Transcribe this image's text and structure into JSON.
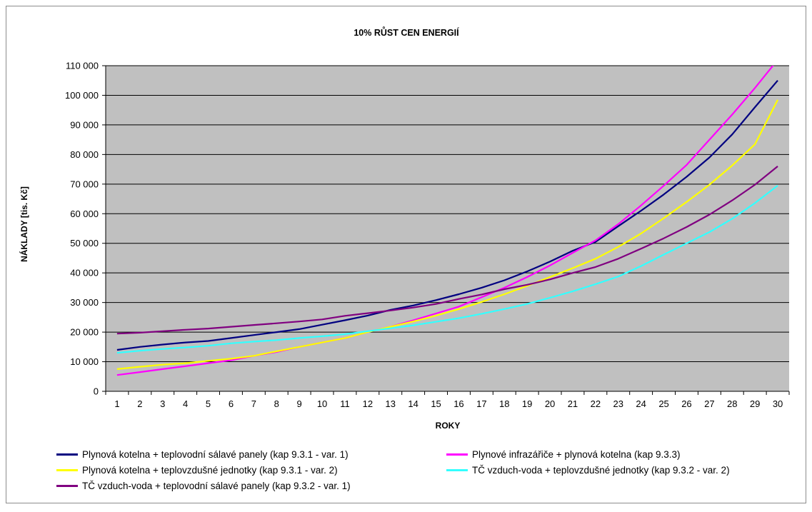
{
  "chart_data": {
    "type": "line",
    "title": "10% RŮST CEN ENERGIÍ",
    "xlabel": "ROKY",
    "ylabel": "NÁKLADY [tis. Kč]",
    "x": [
      1,
      2,
      3,
      4,
      5,
      6,
      7,
      8,
      9,
      10,
      11,
      12,
      13,
      14,
      15,
      16,
      17,
      18,
      19,
      20,
      21,
      22,
      23,
      24,
      25,
      26,
      27,
      28,
      29,
      30
    ],
    "ylim": [
      0,
      110000
    ],
    "yticks": [
      0,
      10000,
      20000,
      30000,
      40000,
      50000,
      60000,
      70000,
      80000,
      90000,
      100000,
      110000
    ],
    "ytick_labels": [
      "0",
      "10 000",
      "20 000",
      "30 000",
      "40 000",
      "50 000",
      "60 000",
      "70 000",
      "80 000",
      "90 000",
      "100 000",
      "110 000"
    ],
    "grid": true,
    "legend_position": "bottom",
    "plot_background": "#c0c0c0",
    "series": [
      {
        "name": "Plynová kotelna + teplovodní sálavé panely (kap 9.3.1 - var. 1)",
        "color": "#000080",
        "values": [
          14000,
          15000,
          15800,
          16500,
          17000,
          18000,
          19000,
          20000,
          21000,
          22500,
          24000,
          25600,
          27500,
          29000,
          30800,
          32800,
          35000,
          37500,
          40500,
          43800,
          47500,
          50500,
          55800,
          61000,
          66500,
          72500,
          79000,
          86800,
          96000,
          105000
        ]
      },
      {
        "name": "Plynové infrazářiče + plynová kotelna (kap 9.3.3)",
        "color": "#ff00ff",
        "values": [
          5500,
          6500,
          7500,
          8500,
          9500,
          10500,
          12000,
          13300,
          15000,
          16500,
          18000,
          20000,
          21800,
          24000,
          26300,
          28600,
          31800,
          35000,
          38600,
          42500,
          46800,
          51000,
          56500,
          62800,
          69500,
          76500,
          85000,
          93500,
          102500,
          112000
        ]
      },
      {
        "name": "Plynová kotelna + teplovzdušné jednotky (kap 9.3.1 - var. 2)",
        "color": "#ffff00",
        "values": [
          7500,
          8300,
          9000,
          9500,
          10300,
          11000,
          12000,
          13500,
          15000,
          16500,
          18000,
          20000,
          21800,
          23600,
          25600,
          27800,
          30200,
          32800,
          35600,
          38600,
          41600,
          44800,
          48800,
          53300,
          58500,
          64000,
          69800,
          76300,
          83500,
          98500
        ]
      },
      {
        "name": "TČ vzduch-voda + teplovzdušné jednotky (kap 9.3.2 - var. 2)",
        "color": "#33ffff",
        "values": [
          13000,
          13700,
          14300,
          14800,
          15400,
          16200,
          16800,
          17300,
          18000,
          18600,
          19300,
          20300,
          21300,
          22300,
          23500,
          24700,
          26200,
          27800,
          29500,
          31600,
          33800,
          36200,
          38800,
          42300,
          46200,
          50000,
          53800,
          58300,
          63600,
          69500
        ]
      },
      {
        "name": "TČ vzduch-voda + teplovodní sálavé panely (kap 9.3.2 - var. 1)",
        "color": "#800080",
        "values": [
          19500,
          19800,
          20300,
          20800,
          21200,
          21800,
          22400,
          23000,
          23600,
          24300,
          25500,
          26400,
          27300,
          28300,
          29500,
          31200,
          32700,
          34500,
          36000,
          37800,
          40000,
          42000,
          44800,
          48200,
          51700,
          55500,
          59700,
          64500,
          69800,
          76000
        ]
      }
    ]
  }
}
